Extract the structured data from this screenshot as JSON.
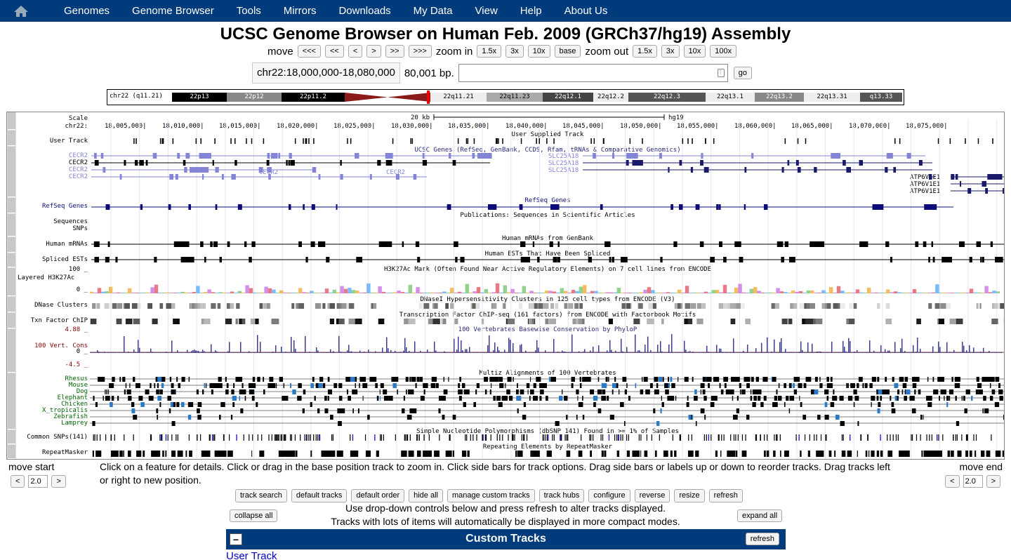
{
  "nav": {
    "home_icon": "home-icon",
    "items": [
      "Genomes",
      "Genome Browser",
      "Tools",
      "Mirrors",
      "Downloads",
      "My Data",
      "View",
      "Help",
      "About Us"
    ]
  },
  "page_title": "UCSC Genome Browser on Human Feb. 2009 (GRCh37/hg19) Assembly",
  "move": {
    "move_label": "move",
    "buttons": [
      "<<<",
      "<<",
      "<",
      ">",
      ">>",
      ">>>"
    ],
    "zoom_in_label": "zoom in",
    "zoom_in": [
      "1.5x",
      "3x",
      "10x",
      "base"
    ],
    "zoom_out_label": "zoom out",
    "zoom_out": [
      "1.5x",
      "3x",
      "10x",
      "100x"
    ]
  },
  "position": {
    "text": "chr22:18,000,000-18,080,000",
    "size": "80,001 bp.",
    "input_value": "",
    "go": "go"
  },
  "ideogram": {
    "label": "chr22 (q11.21)",
    "bands": [
      "22p13",
      "22p12",
      "22p11.2",
      "22q11.21",
      "22q11.23",
      "22q12.1",
      "22q12.2",
      "22q12.3",
      "22q13.1",
      "22q13.2",
      "22q13.31",
      "q13.33"
    ]
  },
  "tracks": {
    "scale_label": "Scale",
    "chr_label": "chr22:",
    "scale_text": "20 kb",
    "assembly": "hg19",
    "positions": [
      "18,005,000|",
      "18,010,000|",
      "18,015,000|",
      "18,020,000|",
      "18,025,000|",
      "18,030,000|",
      "18,035,000|",
      "18,040,000|",
      "18,045,000|",
      "18,050,000|",
      "18,055,000|",
      "18,060,000|",
      "18,065,000|",
      "18,070,000|",
      "18,075,000|"
    ],
    "user_track_title": "User Supplied Track",
    "user_track_label": "User Track",
    "ucsc_genes_title": "UCSC Genes (RefSeq, GenBank, CCDS, Rfam, tRNAs & Comparative Genomics)",
    "cecr2_labels": [
      "CECR2",
      "CECR2",
      "CECR2",
      "CECR2"
    ],
    "cecr2_inner": [
      "CECR2",
      "CECR2"
    ],
    "slc_labels": [
      "SLC25A18",
      "SLC25A18",
      "SLC25A18"
    ],
    "atp_labels": [
      "ATP6V1E1",
      "ATP6V1E1",
      "ATP6V1E1"
    ],
    "refseq_title": "RefSeq Genes",
    "refseq_label": "RefSeq Genes",
    "pubs_title": "Publications: Sequences in Scientific Articles",
    "pubs_labels": [
      "Sequences",
      "SNPs"
    ],
    "mrna_title": "Human mRNAs from GenBank",
    "mrna_label": "Human mRNAs",
    "est_title": "Human ESTs That Have Been Spliced",
    "est_label": "Spliced ESTs",
    "h3k_title": "H3K27Ac Mark (Often Found Near Active Regulatory Elements) on 7 cell lines from ENCODE",
    "h3k_label": "Layered H3K27Ac",
    "h3k_max": "100 _",
    "h3k_min": "0 _",
    "dnase_title": "DNaseI Hypersensitivity Clusters in 125 cell types from ENCODE (V3)",
    "dnase_label": "DNase Clusters",
    "tfbs_title": "Transcription Factor ChIP-seq (161 factors) from ENCODE with Factorbook Motifs",
    "tfbs_label": "Txn Factor ChIP",
    "cons_title": "100 Vertebrates Basewise Conservation by PhyloP",
    "cons_label": "100 Vert. Cons",
    "cons_max": "4.88 _",
    "cons_zero": "0 _",
    "cons_min": "-4.5 _",
    "multiz_title": "Multiz Alignments of 100 Vertebrates",
    "species": [
      "Rhesus",
      "Mouse",
      "Dog",
      "Elephant",
      "Chicken",
      "X_tropicalis",
      "Zebrafish",
      "Lamprey"
    ],
    "snp_title": "Simple Nucleotide Polymorphisms (dbSNP 141) Found in >= 1% of Samples",
    "snp_label": "Common SNPs(141)",
    "rmsk_title": "Repeating Elements by RepeatMasker",
    "rmsk_label": "RepeatMasker"
  },
  "bottom": {
    "move_start": "move start",
    "move_end": "move end",
    "step_value": "2.0",
    "left_btn": "<",
    "right_btn": ">",
    "instructions": "Click on a feature for details. Click or drag in the base position track to zoom in. Click side bars for track options. Drag side bars or labels up or down to reorder tracks. Drag tracks left or right to new position.",
    "buttons": [
      "track search",
      "default tracks",
      "default order",
      "hide all",
      "manage custom tracks",
      "track hubs",
      "configure",
      "reverse",
      "resize",
      "refresh"
    ],
    "info1": "Use drop-down controls below and press refresh to alter tracks displayed.",
    "info2": "Tracks with lots of items will automatically be displayed in more compact modes.",
    "collapse_all": "collapse all",
    "expand_all": "expand all"
  },
  "custom_tracks": {
    "title": "Custom Tracks",
    "minus": "−",
    "refresh": "refresh",
    "link": "User Track"
  }
}
